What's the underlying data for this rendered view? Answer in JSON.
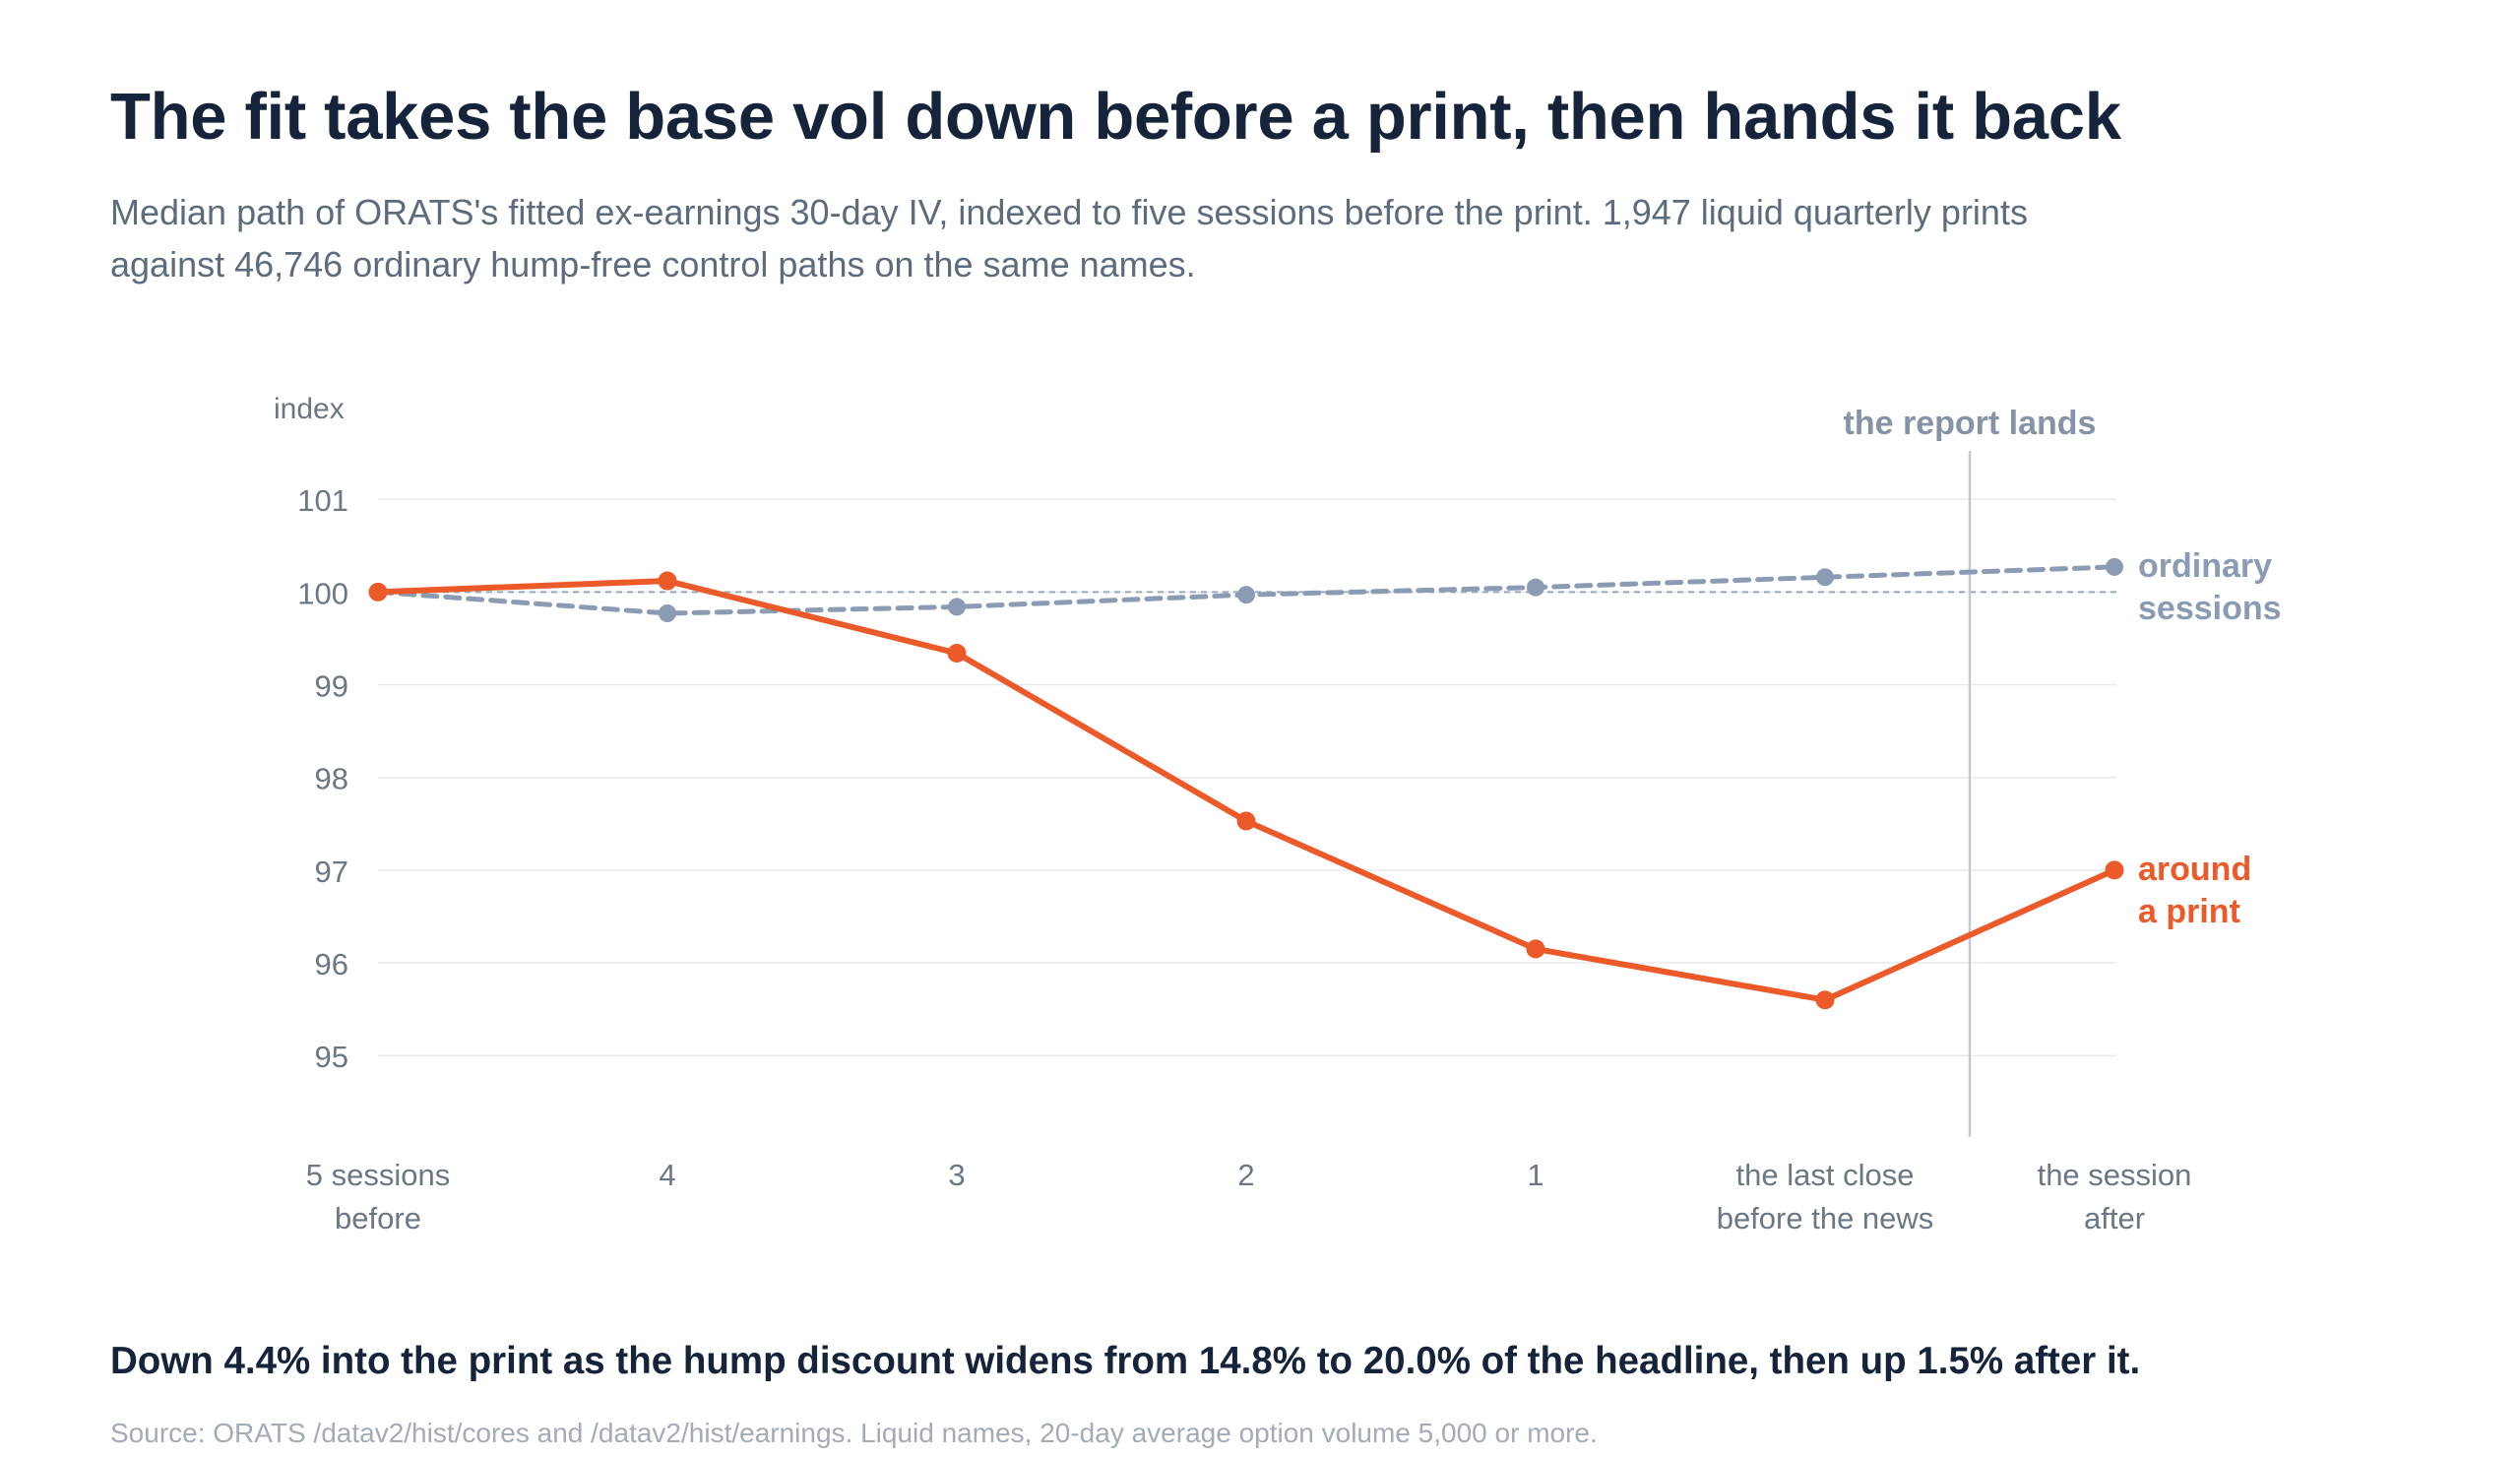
{
  "header": {
    "title": "The fit takes the base vol down before a print, then hands it back",
    "subtitle": "Median path of ORATS's fitted ex-earnings 30-day IV, indexed to five sessions before the print. 1,947 liquid quarterly prints against 46,746 ordinary hump-free control paths on the same names."
  },
  "footer": {
    "takeaway": "Down 4.4% into the print as the hump discount widens from 14.8% to 20.0% of the headline, then up 1.5% after it.",
    "source": "Source: ORATS /datav2/hist/cores and /datav2/hist/earnings. Liquid names, 20-day average option volume 5,000 or more."
  },
  "chart_data": {
    "type": "line",
    "ylabel": "index",
    "ylim": [
      94.1,
      102.0
    ],
    "yticks": [
      95,
      96,
      97,
      98,
      99,
      100,
      101
    ],
    "grid": true,
    "categories": [
      [
        "5 sessions",
        "before"
      ],
      [
        "4"
      ],
      [
        "3"
      ],
      [
        "2"
      ],
      [
        "1"
      ],
      [
        "the last close",
        "before the news"
      ],
      [
        "the session",
        "after"
      ]
    ],
    "reference_line": {
      "value": 100,
      "style": "dotted"
    },
    "event_marker": {
      "label": "the report lands",
      "position": 5.5
    },
    "series": [
      {
        "key": "ordinary",
        "name": [
          "ordinary",
          "sessions"
        ],
        "values": [
          100.0,
          99.77,
          99.84,
          99.97,
          100.05,
          100.16,
          100.27
        ],
        "color": "#8a9bb3",
        "style": "dashed"
      },
      {
        "key": "print",
        "name": [
          "around",
          "a print"
        ],
        "values": [
          100.0,
          100.12,
          99.34,
          97.53,
          96.15,
          95.6,
          97.0
        ],
        "color": "#ec5a2a",
        "style": "solid"
      }
    ]
  }
}
